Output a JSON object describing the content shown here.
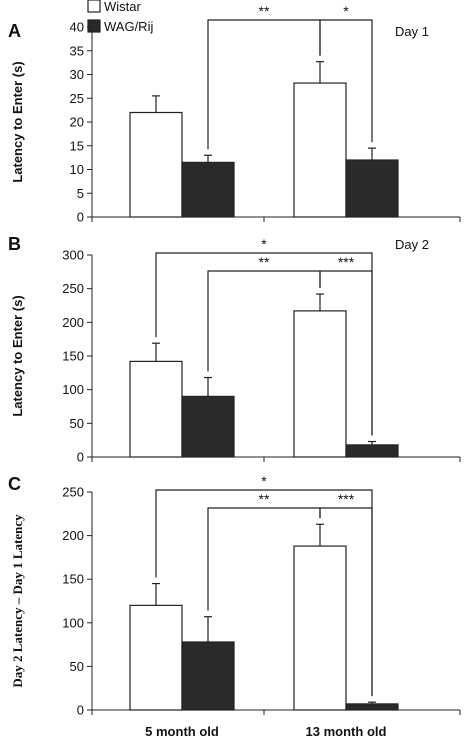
{
  "colors": {
    "wistar": "#ffffff",
    "wagrij": "#2a2a2a",
    "stroke": "#222222"
  },
  "legend": {
    "items": [
      {
        "name": "Wistar",
        "color": "#ffffff"
      },
      {
        "name": "WAG/Rij",
        "color": "#2a2a2a"
      }
    ]
  },
  "x_categories": [
    "5 month old",
    "13 month old"
  ],
  "chart_data": [
    {
      "type": "bar",
      "panel_label": "A",
      "day_label": "Day 1",
      "ylabel": "Latency to Enter (s)",
      "ylim": [
        0,
        40
      ],
      "yticks": [
        0,
        5,
        10,
        15,
        20,
        25,
        30,
        35,
        40
      ],
      "categories": [
        "5 month old",
        "13 month old"
      ],
      "series": [
        {
          "name": "Wistar",
          "values": [
            22,
            28.2
          ],
          "errors": [
            3.5,
            4.5
          ]
        },
        {
          "name": "WAG/Rij",
          "values": [
            11.5,
            12
          ],
          "errors": [
            1.5,
            2.5
          ]
        }
      ],
      "significance": [
        {
          "label": "**",
          "from": "5 month old|WAG/Rij",
          "to": "13 month old|Wistar"
        },
        {
          "label": "*",
          "from": "13 month old|Wistar",
          "to": "13 month old|WAG/Rij"
        }
      ]
    },
    {
      "type": "bar",
      "panel_label": "B",
      "day_label": "Day 2",
      "ylabel": "Latency to Enter (s)",
      "ylim": [
        0,
        300
      ],
      "yticks": [
        0,
        50,
        100,
        150,
        200,
        250,
        300
      ],
      "categories": [
        "5 month old",
        "13 month old"
      ],
      "series": [
        {
          "name": "Wistar",
          "values": [
            142,
            217
          ],
          "errors": [
            27,
            25
          ]
        },
        {
          "name": "WAG/Rij",
          "values": [
            90,
            18
          ],
          "errors": [
            28,
            5
          ]
        }
      ],
      "significance": [
        {
          "label": "*",
          "from": "5 month old|Wistar",
          "to": "13 month old|WAG/Rij"
        },
        {
          "label": "**",
          "from": "5 month old|WAG/Rij",
          "to": "13 month old|Wistar"
        },
        {
          "label": "***",
          "from": "13 month old|Wistar",
          "to": "13 month old|WAG/Rij"
        }
      ]
    },
    {
      "type": "bar",
      "panel_label": "C",
      "day_label": "",
      "ylabel": "Day 2 Latency – Day 1 Latency",
      "ylim": [
        0,
        250
      ],
      "yticks": [
        0,
        50,
        100,
        150,
        200,
        250
      ],
      "categories": [
        "5 month old",
        "13 month old"
      ],
      "series": [
        {
          "name": "Wistar",
          "values": [
            120,
            188
          ],
          "errors": [
            25,
            25
          ]
        },
        {
          "name": "WAG/Rij",
          "values": [
            78,
            7
          ],
          "errors": [
            29,
            2
          ]
        }
      ],
      "significance": [
        {
          "label": "*",
          "from": "5 month old|Wistar",
          "to": "13 month old|WAG/Rij"
        },
        {
          "label": "**",
          "from": "5 month old|WAG/Rij",
          "to": "13 month old|Wistar"
        },
        {
          "label": "***",
          "from": "13 month old|Wistar",
          "to": "13 month old|WAG/Rij"
        }
      ]
    }
  ]
}
